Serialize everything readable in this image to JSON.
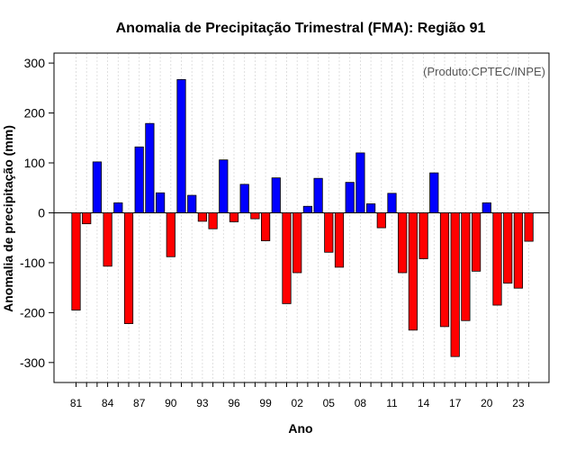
{
  "chart_data": {
    "type": "bar",
    "title": "Anomalia de Precipitação Trimestral (FMA): Região 91",
    "xlabel": "Ano",
    "ylabel": "Anomalia de precipitação (mm)",
    "credit": "(Produto:CPTEC/INPE)",
    "ylim": [
      -340,
      320
    ],
    "yticks": [
      -300,
      -200,
      -100,
      0,
      100,
      200,
      300
    ],
    "xtick_labels": [
      "81",
      "84",
      "87",
      "90",
      "93",
      "96",
      "99",
      "02",
      "05",
      "08",
      "11",
      "14",
      "17",
      "20",
      "23"
    ],
    "categories": [
      "1981",
      "1982",
      "1983",
      "1984",
      "1985",
      "1986",
      "1987",
      "1988",
      "1989",
      "1990",
      "1991",
      "1992",
      "1993",
      "1994",
      "1995",
      "1996",
      "1997",
      "1998",
      "1999",
      "2000",
      "2001",
      "2002",
      "2003",
      "2004",
      "2005",
      "2006",
      "2007",
      "2008",
      "2009",
      "2010",
      "2011",
      "2012",
      "2013",
      "2014",
      "2015",
      "2016",
      "2017",
      "2018",
      "2019",
      "2020",
      "2021",
      "2022",
      "2023",
      "2024"
    ],
    "values": [
      -195,
      -22,
      102,
      -107,
      20,
      -222,
      132,
      179,
      40,
      -88,
      267,
      35,
      -17,
      -32,
      106,
      -18,
      57,
      -12,
      -56,
      70,
      -182,
      -120,
      13,
      69,
      -79,
      -109,
      61,
      120,
      18,
      -30,
      39,
      -120,
      -235,
      -92,
      80,
      -228,
      -288,
      -216,
      -117,
      20,
      -185,
      -141,
      -151,
      -57
    ],
    "positive_color": "#0000ff",
    "negative_color": "#ff0000",
    "grid": true
  }
}
